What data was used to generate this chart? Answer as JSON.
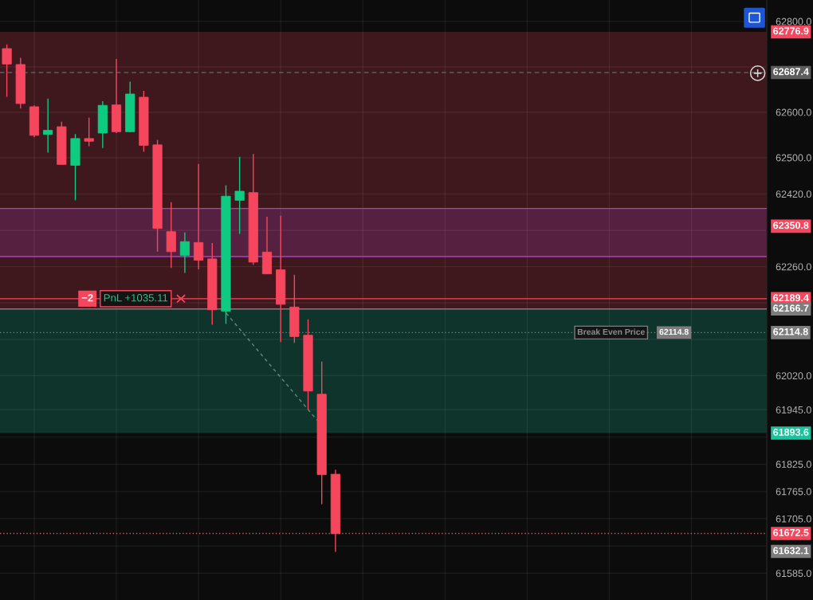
{
  "chart_data": {
    "type": "candlestick",
    "categories": [
      null,
      null,
      null,
      null,
      null,
      null,
      null,
      null,
      null,
      null,
      null,
      null,
      null,
      null,
      null,
      null,
      null,
      null,
      null,
      null,
      null,
      null,
      null,
      null,
      null,
      null,
      null,
      null,
      null,
      null,
      null,
      null,
      null,
      null,
      null,
      null,
      null,
      null,
      null,
      null,
      null,
      null,
      null,
      null,
      null,
      null,
      null,
      null,
      null,
      null,
      null,
      null,
      null,
      null,
      null,
      null
    ],
    "ohlc": [
      [
        62740,
        62749,
        62634,
        62706
      ],
      [
        62705,
        62720,
        62608,
        62619
      ],
      [
        62612,
        62615,
        62545,
        62549
      ],
      [
        62551,
        62630,
        62511,
        62560
      ],
      [
        62568,
        62579,
        62484,
        62485
      ],
      [
        62483,
        62552,
        62406,
        62542
      ],
      [
        62542,
        62588,
        62525,
        62536
      ],
      [
        62554,
        62624,
        62521,
        62615
      ],
      [
        62616,
        62717,
        62554,
        62557
      ],
      [
        62557,
        62667,
        62556,
        62640
      ],
      [
        62633,
        62647,
        62513,
        62527
      ],
      [
        62528,
        62539,
        62293,
        62344
      ],
      [
        62337,
        62402,
        62257,
        62293
      ],
      [
        62285,
        62335,
        62246,
        62315
      ],
      [
        62313,
        62486,
        62254,
        62274
      ],
      [
        62277,
        62312,
        62132,
        62165
      ],
      [
        62162,
        62439,
        62134,
        62415
      ],
      [
        62406,
        62502,
        62332,
        62426
      ],
      [
        62423,
        62508,
        62264,
        62270
      ],
      [
        62292,
        62370,
        62244,
        62244
      ],
      [
        62253,
        62372,
        62094,
        62177
      ],
      [
        62171,
        62242,
        62092,
        62106
      ],
      [
        62109,
        62144,
        61945,
        61986
      ],
      [
        61979,
        62051,
        61737,
        61802
      ],
      [
        61803,
        61813,
        61632,
        61672
      ],
      null,
      null,
      null,
      null,
      null,
      null,
      null,
      null,
      null,
      null,
      null,
      null,
      null,
      null,
      null,
      null,
      null,
      null,
      null,
      null,
      null,
      null,
      null,
      null,
      null,
      null,
      null,
      null,
      null,
      null,
      null
    ],
    "colors": [
      "#f6465d",
      "#f6465d",
      "#f6465d",
      "#0ecb81",
      "#f6465d",
      "#0ecb81",
      "#f6465d",
      "#0ecb81",
      "#f6465d",
      "#0ecb81",
      "#f6465d",
      "#f6465d",
      "#f6465d",
      "#0ecb81",
      "#f6465d",
      "#f6465d",
      "#0ecb81",
      "#0ecb81",
      "#f6465d",
      "#f6465d",
      "#f6465d",
      "#f6465d",
      "#f6465d",
      "#f6465d",
      "#f6465d",
      null,
      null,
      null,
      null,
      null,
      null,
      null,
      null,
      null,
      null,
      null,
      null,
      null,
      null,
      null,
      null,
      null,
      null,
      null,
      null,
      null,
      null,
      null,
      null,
      null,
      null,
      null,
      null,
      null,
      null,
      null
    ],
    "ylim": [
      61526,
      62847
    ],
    "yticks": [
      {
        "value": 62800,
        "label": "62800.0"
      },
      {
        "value": 62700,
        "label": null
      },
      {
        "value": 62600,
        "label": "62600.0"
      },
      {
        "value": 62500,
        "label": "62500.0"
      },
      {
        "value": 62420,
        "label": "62420.0"
      },
      {
        "value": 62340,
        "label": null
      },
      {
        "value": 62260,
        "label": "62260.0"
      },
      {
        "value": 62180,
        "label": null
      },
      {
        "value": 62100,
        "label": null
      },
      {
        "value": 62020,
        "label": "62020.0"
      },
      {
        "value": 61945,
        "label": "61945.0"
      },
      {
        "value": 61885,
        "label": null
      },
      {
        "value": 61825,
        "label": "61825.0"
      },
      {
        "value": 61765,
        "label": "61765.0"
      },
      {
        "value": 61705,
        "label": "61705.0"
      },
      {
        "value": 61645,
        "label": null
      },
      {
        "value": 61585,
        "label": "61585.0"
      }
    ],
    "grid": true,
    "tick_labels": "y",
    "bands": [
      {
        "axis": "y",
        "from": 62166.7,
        "to": 62776.9,
        "label": "62776.9",
        "color": "#f6465d"
      },
      {
        "axis": "y",
        "from": 62166.7,
        "to": 61893.6,
        "label": "61893.6",
        "color": "#19c49c"
      },
      {
        "axis": "y",
        "from": 62282,
        "to": 62388,
        "color": "#a843bd"
      }
    ],
    "ref_lines": [
      {
        "axis": "y",
        "value": 62687.4,
        "label": "62687.4",
        "color": "#5d5d5d",
        "line_style": "dashed"
      },
      {
        "axis": "y",
        "value": 62189.4,
        "label": "62189.4",
        "color": "#f6465d",
        "line_style": "solid"
      },
      {
        "axis": "y",
        "value": 62166.7,
        "label": "62166.7",
        "color": "#7d7d7d",
        "line_style": "solid"
      },
      {
        "axis": "y",
        "value": 62114.8,
        "label": "62114.8",
        "color": "#7d7d7d",
        "line_style": "dotted"
      },
      {
        "axis": "y",
        "value": 61672.5,
        "label": "61672.5",
        "color": "#f6465d",
        "line_style": "dotted"
      },
      {
        "axis": "y",
        "value": 62388,
        "label": null,
        "color": "#a843bd",
        "line_style": "solid"
      },
      {
        "axis": "y",
        "value": 62282,
        "label": null,
        "color": "#a843bd",
        "line_style": "solid"
      }
    ],
    "annotations": [
      {
        "text": "−2",
        "y": 62189.4
      },
      {
        "text": "PnL +1035.11",
        "y": 62189.4
      },
      {
        "text": "Break Even Price",
        "y": 62114.8
      },
      {
        "text": "62114.8",
        "y": 62114.8
      },
      "62350.8",
      "61632.1"
    ]
  }
}
